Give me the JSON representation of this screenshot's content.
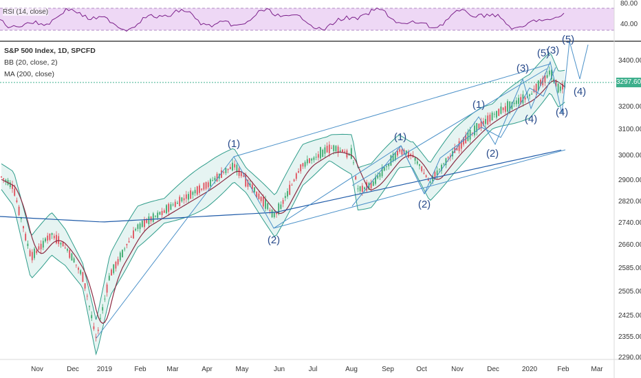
{
  "rsi_panel": {
    "label": "RSI (14, close)",
    "ticks": [
      "80.00",
      "40.00"
    ]
  },
  "main_panel": {
    "title": "S&P 500 Index, 1D, SPCFD",
    "indicator_bb": "BB (20, close, 2)",
    "indicator_ma": "MA (200, close)",
    "last_price": "3297.60",
    "price_ticks": [
      "3400.00",
      "3297.60",
      "3200.00",
      "3100.00",
      "3000.00",
      "2900.00",
      "2820.00",
      "2740.00",
      "2660.00",
      "2585.00",
      "2505.00",
      "2425.00",
      "2355.00",
      "2290.00"
    ],
    "time_ticks": [
      "Nov",
      "Dec",
      "2019",
      "Feb",
      "Mar",
      "Apr",
      "May",
      "Jun",
      "Jul",
      "Aug",
      "Sep",
      "Oct",
      "Nov",
      "Dec",
      "2020",
      "Feb",
      "Mar"
    ]
  },
  "wave_labels": [
    "(1)",
    "(2)",
    "(1)",
    "(2)",
    "(1)",
    "(2)",
    "(3)",
    "(4)",
    "(5)",
    "(3)",
    "(4)",
    "(4)",
    "(5)"
  ],
  "colors": {
    "bb_fill": "#e6f4f2",
    "bb_line": "#2e9c8a",
    "ma20": "#8b2a42",
    "ma200": "#1e5aa8",
    "wave_lines": "#4a90c8",
    "wave_text": "#27498a",
    "candle_up": "#3aa86b",
    "candle_down": "#e04d59",
    "rsi_band": "#eed8f5",
    "rsi_line": "#7b1f8a",
    "price_tag": "#3daf8c"
  }
}
